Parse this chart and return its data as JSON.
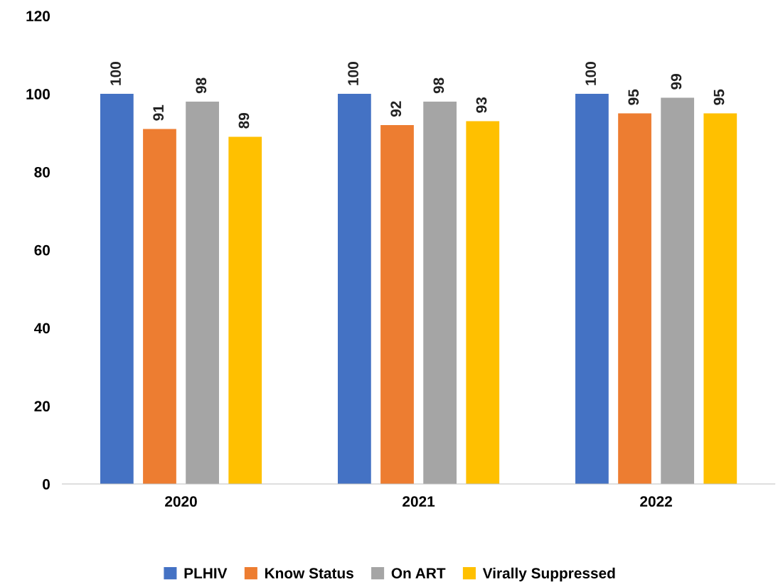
{
  "chart_data": {
    "type": "bar",
    "categories": [
      "2020",
      "2021",
      "2022"
    ],
    "series": [
      {
        "name": "PLHIV",
        "color": "#4472c4",
        "values": [
          100,
          100,
          100
        ]
      },
      {
        "name": "Know Status",
        "color": "#ed7d31",
        "values": [
          91,
          92,
          95
        ]
      },
      {
        "name": "On ART",
        "color": "#a5a5a5",
        "values": [
          98,
          98,
          99
        ]
      },
      {
        "name": "Virally Suppressed",
        "color": "#ffc000",
        "values": [
          89,
          93,
          95
        ]
      }
    ],
    "ylim": [
      0,
      120
    ],
    "yticks": [
      0,
      20,
      40,
      60,
      80,
      100,
      120
    ],
    "grid": false,
    "legend": "bottom",
    "data_labels": true
  }
}
